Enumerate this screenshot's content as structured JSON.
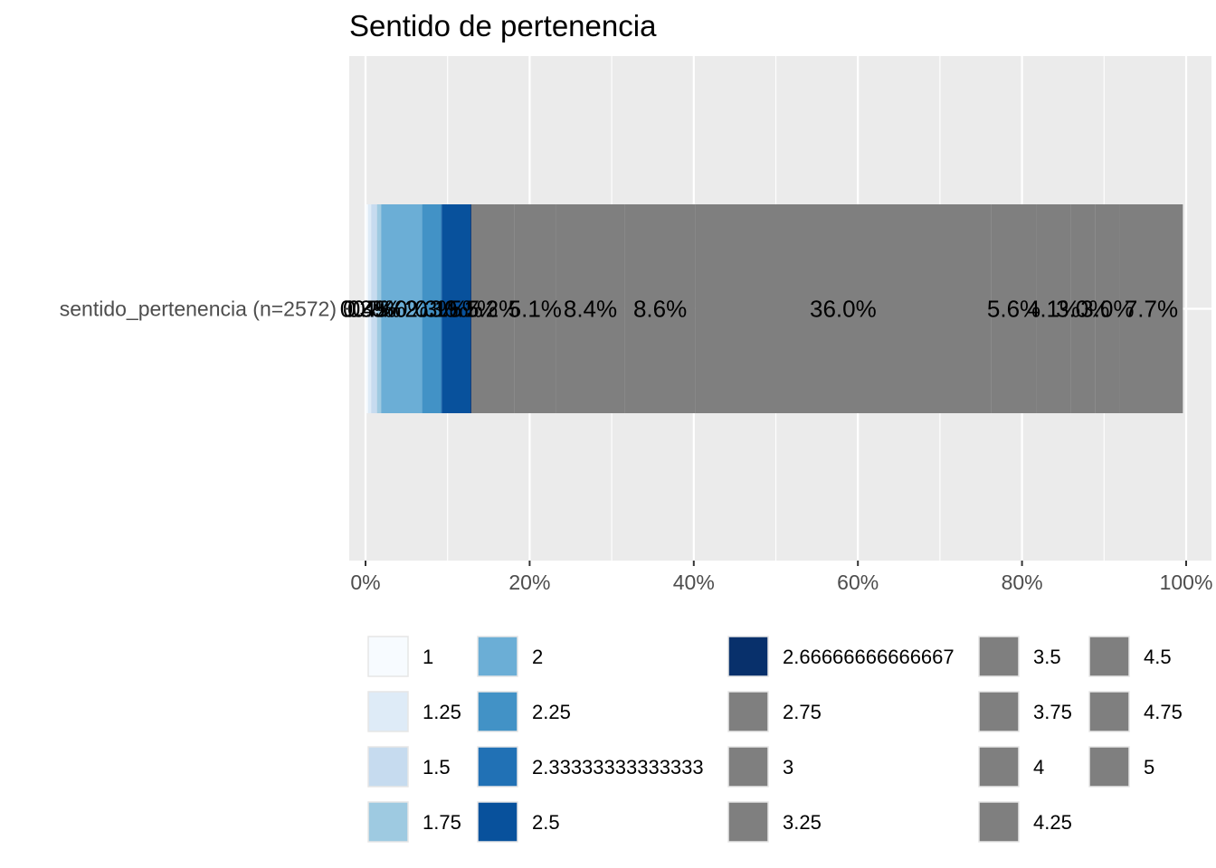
{
  "chart_data": {
    "type": "bar",
    "orientation": "horizontal",
    "stacked": true,
    "title": "Sentido de pertenencia",
    "xlabel": "",
    "ylabel": "",
    "categories": [
      "sentido_pertenencia (n=2572)"
    ],
    "xlim": [
      0,
      100
    ],
    "x_ticks": [
      "0%",
      "20%",
      "40%",
      "60%",
      "80%",
      "100%"
    ],
    "x_tick_values": [
      0,
      20,
      40,
      60,
      80,
      100
    ],
    "grid": true,
    "legend_position": "bottom",
    "series": [
      {
        "name": "1",
        "values": [
          0.3
        ],
        "label": "0.3%",
        "color": "#f7fbff"
      },
      {
        "name": "1.25",
        "values": [
          0.4
        ],
        "label": "0.4%",
        "color": "#deebf7"
      },
      {
        "name": "1.5",
        "values": [
          0.7
        ],
        "label": "0.7%",
        "color": "#c6dbef"
      },
      {
        "name": "1.75",
        "values": [
          0.5
        ],
        "label": "0.5%",
        "color": "#9ecae1"
      },
      {
        "name": "2",
        "values": [
          5.0
        ],
        "label": "5.0%",
        "color": "#6baed6"
      },
      {
        "name": "2.25",
        "values": [
          2.3
        ],
        "label": "2.3%",
        "color": "#4292c6"
      },
      {
        "name": "2.33333333333333",
        "values": [
          0.1
        ],
        "label": "0.1%",
        "color": "#2171b5"
      },
      {
        "name": "2.5",
        "values": [
          3.5
        ],
        "label": "3.5%",
        "color": "#08519c"
      },
      {
        "name": "2.66666666666667",
        "values": [
          0.1
        ],
        "label": "0.1%",
        "color": "#08306b"
      },
      {
        "name": "2.75",
        "values": [
          5.2
        ],
        "label": "5.2%",
        "color": "#7f7f7f"
      },
      {
        "name": "3",
        "values": [
          5.1
        ],
        "label": "5.1%",
        "color": "#7f7f7f"
      },
      {
        "name": "3.25",
        "values": [
          8.4
        ],
        "label": "8.4%",
        "color": "#7f7f7f"
      },
      {
        "name": "3.5",
        "values": [
          8.6
        ],
        "label": "8.6%",
        "color": "#7f7f7f"
      },
      {
        "name": "3.75",
        "values": [
          36.0
        ],
        "label": "36.0%",
        "color": "#7f7f7f"
      },
      {
        "name": "4",
        "values": [
          5.6
        ],
        "label": "5.6%",
        "color": "#7f7f7f"
      },
      {
        "name": "4.25",
        "values": [
          4.1
        ],
        "label": "4.1%",
        "color": "#7f7f7f"
      },
      {
        "name": "4.5",
        "values": [
          3.0
        ],
        "label": "3.0%",
        "color": "#7f7f7f"
      },
      {
        "name": "4.75",
        "values": [
          3.0
        ],
        "label": "3.0%",
        "color": "#7f7f7f"
      },
      {
        "name": "5",
        "values": [
          7.7
        ],
        "label": "7.7%",
        "color": "#7f7f7f"
      }
    ],
    "colors": {
      "panel_background": "#ebebeb",
      "grid": "#ffffff",
      "text": "#000000",
      "axis_text": "#4d4d4d",
      "tick": "#333333"
    }
  }
}
